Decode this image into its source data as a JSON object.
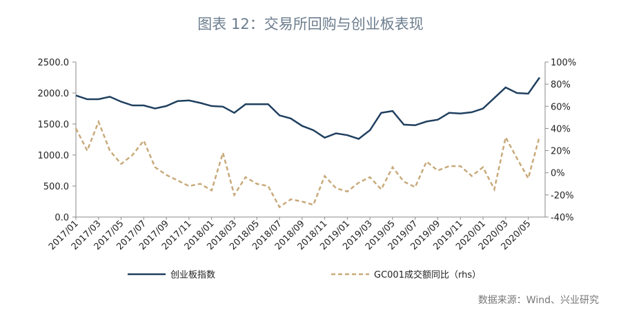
{
  "chart_data": {
    "type": "line",
    "title": "图表 12：交易所回购与创业板表现",
    "source": "数据来源：Wind、兴业研究",
    "categories": [
      "2017/01",
      null,
      "2017/03",
      null,
      "2017/05",
      null,
      "2017/07",
      null,
      "2017/09",
      null,
      "2017/11",
      null,
      "2018/01",
      null,
      "2018/03",
      null,
      "2018/05",
      null,
      "2018/07",
      null,
      "2018/09",
      null,
      "2018/11",
      null,
      "2019/01",
      null,
      "2019/03",
      null,
      "2019/05",
      null,
      "2019/07",
      null,
      "2019/09",
      null,
      "2019/11",
      null,
      "2020/01",
      null,
      "2020/03",
      null,
      "2020/05",
      null
    ],
    "series": [
      {
        "name": "创业板指数",
        "color": "#1f3f5f",
        "dash": "none",
        "axis": "y",
        "values": [
          1960,
          1900,
          1900,
          1940,
          1860,
          1800,
          1800,
          1750,
          1790,
          1870,
          1880,
          1840,
          1790,
          1780,
          1680,
          1820,
          1820,
          1820,
          1640,
          1590,
          1470,
          1400,
          1280,
          1350,
          1320,
          1260,
          1400,
          1680,
          1710,
          1490,
          1480,
          1540,
          1570,
          1680,
          1670,
          1690,
          1750,
          1920,
          2090,
          2000,
          1990,
          2250
        ]
      },
      {
        "name": "GC001成交额同比（rhs）",
        "color": "#c8a97a",
        "dash": "6,4",
        "axis": "y2",
        "values": [
          40,
          20,
          46,
          20,
          8,
          16,
          29,
          5,
          -2,
          -7,
          -12,
          -10,
          -16,
          18,
          -20,
          -4,
          -10,
          -12,
          -31,
          -24,
          -26,
          -29,
          -3,
          -14,
          -17,
          -9,
          -4,
          -15,
          5,
          -8,
          -13,
          10,
          2,
          6,
          6,
          -3,
          5,
          -15,
          32,
          13,
          -5,
          33
        ]
      }
    ],
    "ylim": [
      0,
      2500
    ],
    "yticks": [
      {
        "value": 0,
        "label": "0.0"
      },
      {
        "value": 500,
        "label": "500.0"
      },
      {
        "value": 1000,
        "label": "1000.0"
      },
      {
        "value": 1500,
        "label": "1500.0"
      },
      {
        "value": 2000,
        "label": "2000.0"
      },
      {
        "value": 2500,
        "label": "2500.0"
      }
    ],
    "y2lim": [
      -40,
      100
    ],
    "y2ticks": [
      {
        "value": -40,
        "label": "-40%"
      },
      {
        "value": -20,
        "label": "-20%"
      },
      {
        "value": 0,
        "label": "0%"
      },
      {
        "value": 20,
        "label": "20%"
      },
      {
        "value": 40,
        "label": "40%"
      },
      {
        "value": 60,
        "label": "60%"
      },
      {
        "value": 80,
        "label": "80%"
      },
      {
        "value": 100,
        "label": "100%"
      }
    ]
  }
}
